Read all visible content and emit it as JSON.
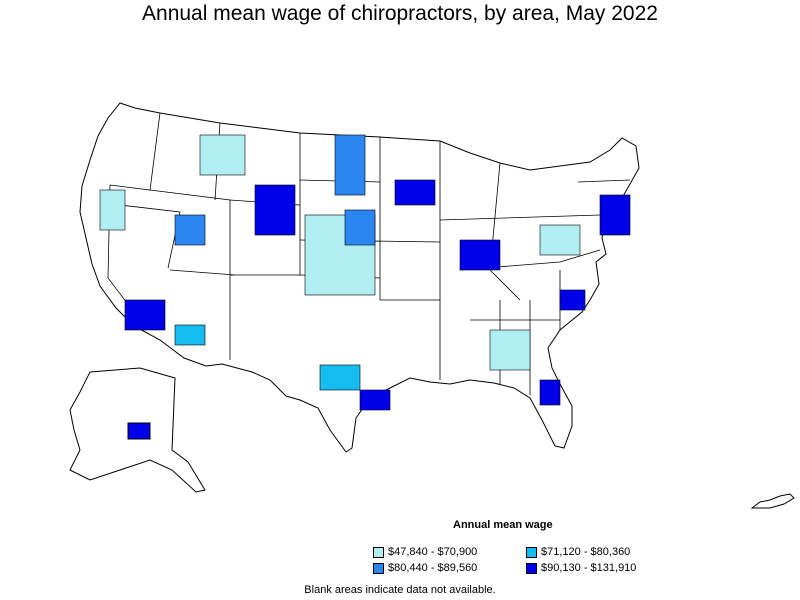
{
  "title": "Annual mean wage of chiropractors, by area, May 2022",
  "legend": {
    "title": "Annual mean wage",
    "items": [
      {
        "label": "$47,840 - $70,900",
        "color": "#b0eef2"
      },
      {
        "label": "$71,120 - $80,360",
        "color": "#15bcf0"
      },
      {
        "label": "$80,440 - $89,560",
        "color": "#2c86f2"
      },
      {
        "label": "$90,130 - $131,910",
        "color": "#0000e8"
      }
    ]
  },
  "footnote": "Blank areas indicate data not available."
}
